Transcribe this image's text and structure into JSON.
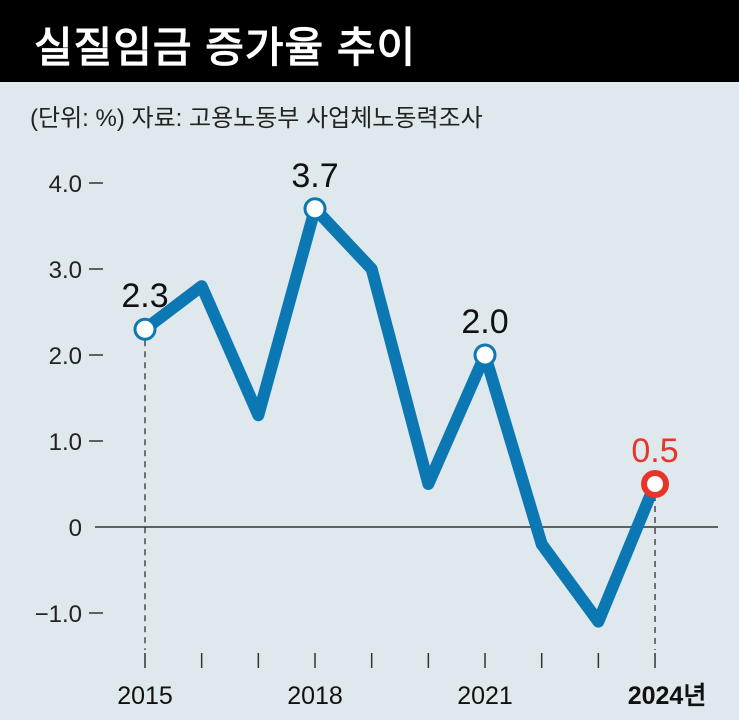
{
  "header": {
    "title": "실질임금 증가율 추이",
    "subtitle": "(단위: %) 자료: 고용노동부 사업체노동력조사"
  },
  "chart_data": {
    "type": "line",
    "title": "실질임금 증가율 추이",
    "ylabel": "%",
    "x": [
      2015,
      2016,
      2017,
      2018,
      2019,
      2020,
      2021,
      2022,
      2023,
      2024
    ],
    "values": [
      2.3,
      2.8,
      1.3,
      3.7,
      3.0,
      0.5,
      2.0,
      -0.2,
      -1.1,
      0.5
    ],
    "ylim": [
      -1.4,
      4.3
    ],
    "yticks": [
      4.0,
      3.0,
      2.0,
      1.0,
      0,
      -1.0
    ],
    "ytick_labels": [
      "4.0",
      "3.0",
      "2.0",
      "1.0",
      "0",
      "−1.0"
    ],
    "xtick_labels": [
      {
        "year": 2015,
        "label": "2015"
      },
      {
        "year": 2018,
        "label": "2018"
      },
      {
        "year": 2021,
        "label": "2021"
      },
      {
        "year": 2024,
        "label": "2024년"
      }
    ],
    "annotations": [
      {
        "year": 2015,
        "label": "2.3"
      },
      {
        "year": 2018,
        "label": "3.7"
      },
      {
        "year": 2021,
        "label": "2.0"
      },
      {
        "year": 2024,
        "label": "0.5",
        "highlight": true
      }
    ],
    "colors": {
      "line": "#0b78b4",
      "highlight": "#e8352b",
      "axis": "#333333"
    }
  }
}
